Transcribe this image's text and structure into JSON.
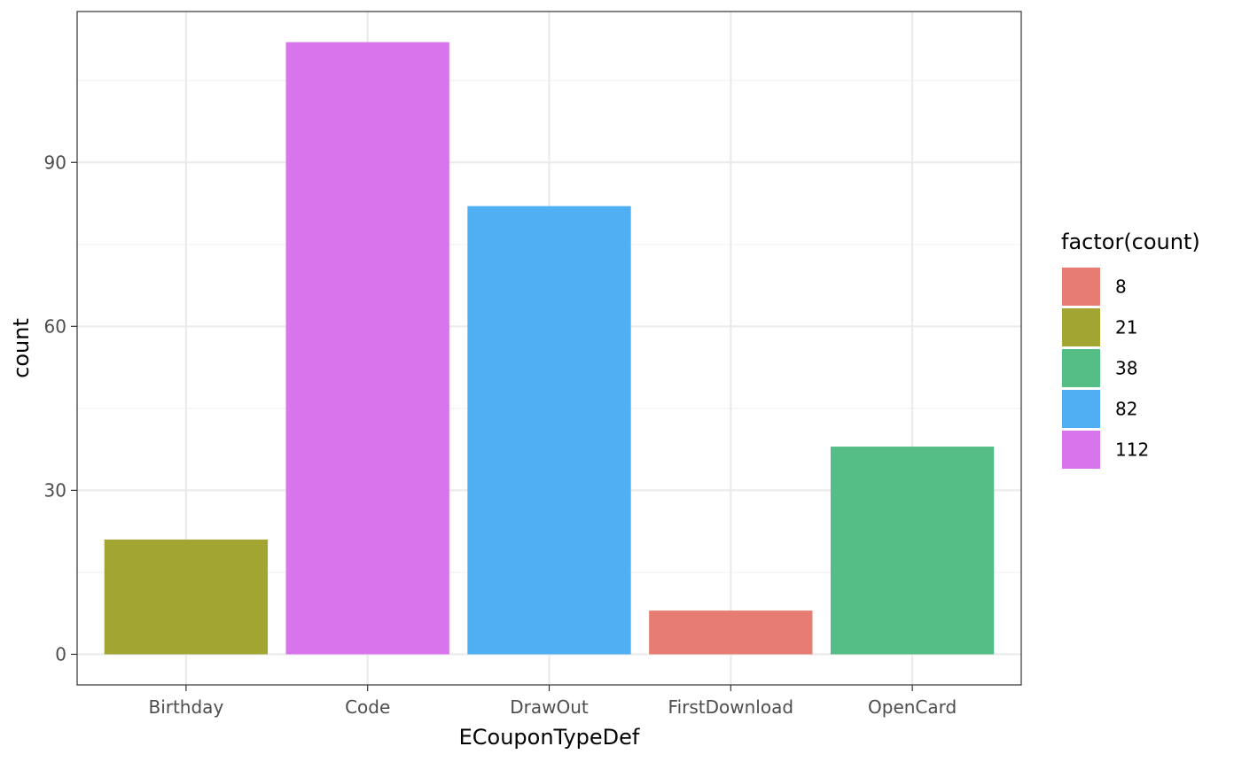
{
  "chart_data": {
    "type": "bar",
    "categories": [
      "Birthday",
      "Code",
      "DrawOut",
      "FirstDownload",
      "OpenCard"
    ],
    "values": [
      21,
      112,
      82,
      8,
      38
    ],
    "bar_colors": [
      "#A3A533",
      "#D874EC",
      "#50AEF3",
      "#E77D72",
      "#55BE87"
    ],
    "xlabel": "ECouponTypeDef",
    "ylabel": "count",
    "ylim": [
      -5.6,
      117.6
    ],
    "yticks": [
      0,
      30,
      60,
      90
    ],
    "ytick_labels": [
      "0",
      "30",
      "60",
      "90"
    ],
    "grid": true,
    "legend": {
      "title": "factor(count)",
      "position": "right",
      "entries": [
        {
          "label": "8",
          "color": "#E77D72"
        },
        {
          "label": "21",
          "color": "#A3A533"
        },
        {
          "label": "38",
          "color": "#55BE87"
        },
        {
          "label": "82",
          "color": "#50AEF3"
        },
        {
          "label": "112",
          "color": "#D874EC"
        }
      ]
    },
    "colors": {
      "panel_border": "#333333",
      "grid_major": "#ebebeb",
      "grid_minor": "#f2f2f2",
      "tick": "#333333"
    }
  }
}
